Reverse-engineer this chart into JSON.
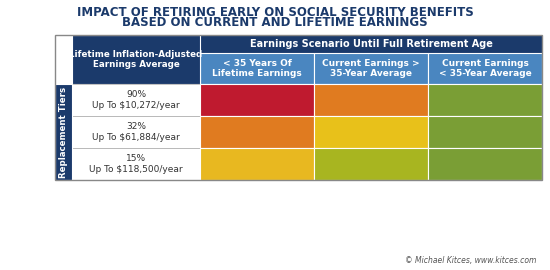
{
  "title_line1": "IMPACT OF RETIRING EARLY ON SOCIAL SECURITY BENEFITS",
  "title_line2": "BASED ON CURRENT AND LIFETIME EARNINGS",
  "header_main": "Earnings Scenario Until Full Retirement Age",
  "col_headers": [
    "< 35 Years Of\nLifetime Earnings",
    "Current Earnings >\n35-Year Average",
    "Current Earnings\n< 35-Year Average"
  ],
  "row_header_top": "Lifetime Inflation-Adjusted\nEarnings Average",
  "row_side_label": "Replacement Tiers",
  "rows": [
    {
      "label": "90%\nUp To $10,272/year"
    },
    {
      "label": "32%\nUp To $61,884/year"
    },
    {
      "label": "15%\nUp To $118,500/year"
    }
  ],
  "cell_colors": [
    [
      "#bf1a2f",
      "#e07b20",
      "#7a9e35"
    ],
    [
      "#e07b20",
      "#e8c11a",
      "#7a9e35"
    ],
    [
      "#e8b820",
      "#a8b520",
      "#7a9e35"
    ]
  ],
  "dark_blue": "#1b3a6b",
  "light_blue": "#4a86c0",
  "bg_color": "#ffffff",
  "title_color": "#1b3a6b",
  "border_color": "#c8c8c8",
  "watermark": "© Michael Kitces, www.kitces.com",
  "watermark_link": "www.kitces.com"
}
